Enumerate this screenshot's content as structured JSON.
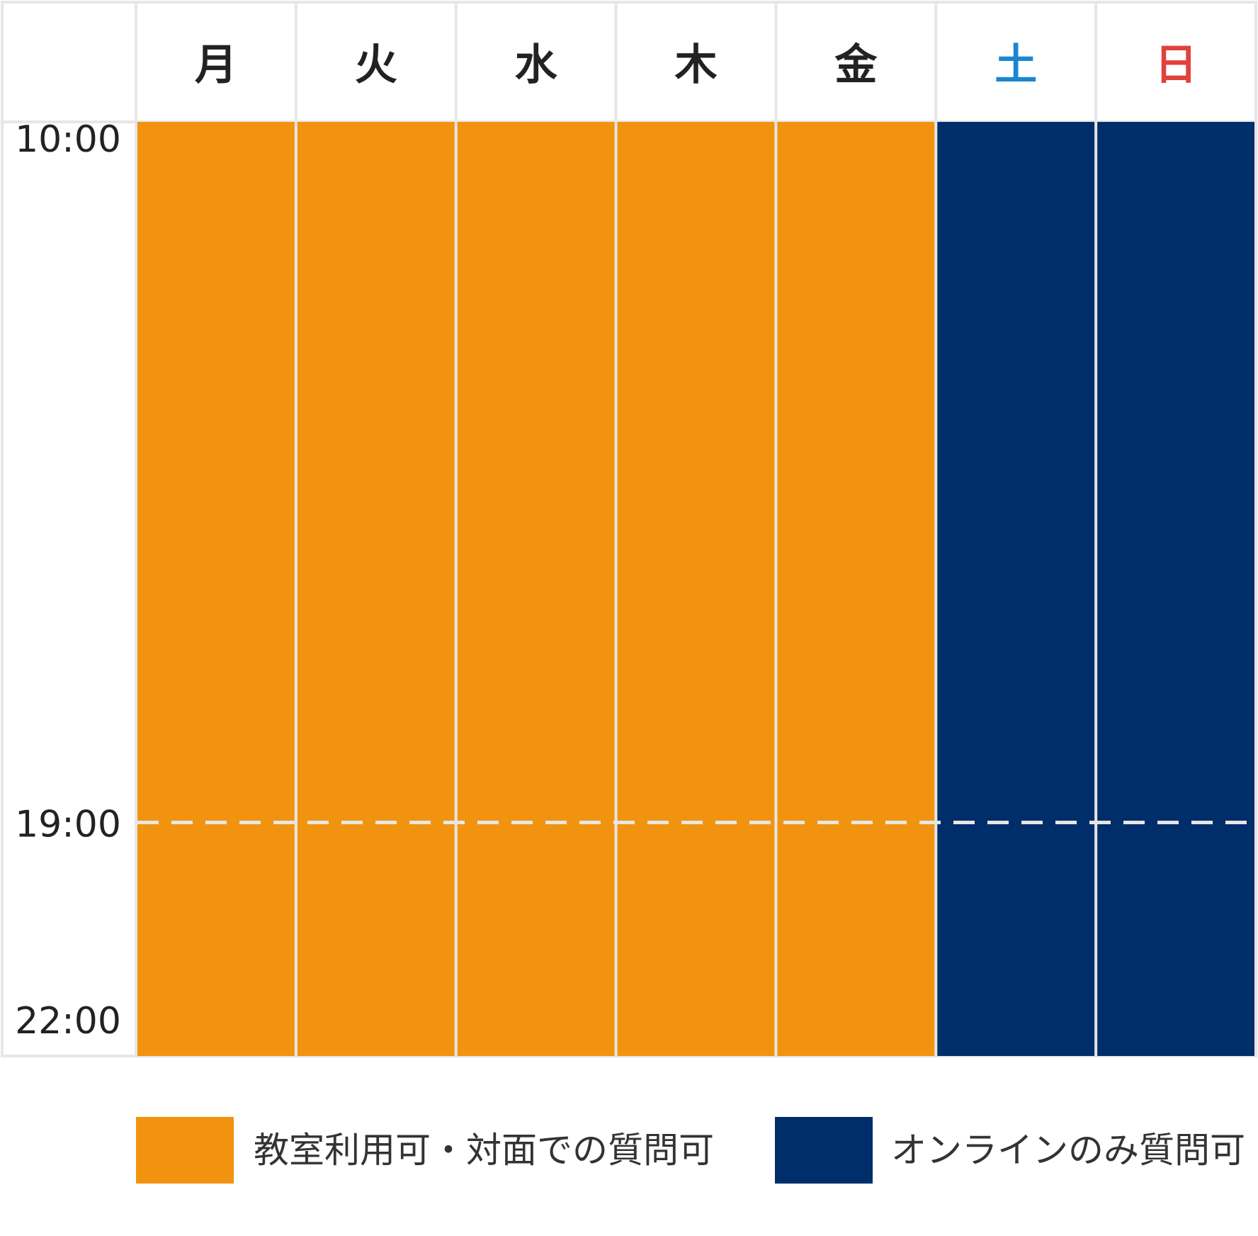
{
  "chart_data": {
    "type": "timetable",
    "days": [
      {
        "label": "月",
        "color": "#222222",
        "category": "classroom"
      },
      {
        "label": "火",
        "color": "#222222",
        "category": "classroom"
      },
      {
        "label": "水",
        "color": "#222222",
        "category": "classroom"
      },
      {
        "label": "木",
        "color": "#222222",
        "category": "classroom"
      },
      {
        "label": "金",
        "color": "#222222",
        "category": "classroom"
      },
      {
        "label": "土",
        "color": "#1a86d0",
        "category": "online"
      },
      {
        "label": "日",
        "color": "#e0413a",
        "category": "online"
      }
    ],
    "time_ticks": [
      "10:00",
      "19:00",
      "22:00"
    ],
    "time_range": [
      "10:00",
      "22:00"
    ],
    "marker_time": "19:00",
    "blocks_start": "10:00",
    "blocks_end": "22:00",
    "legend": [
      {
        "key": "classroom",
        "label": "教室利用可・対面での質問可",
        "color": "#f2930f"
      },
      {
        "key": "online",
        "label": "オンラインのみ質問可",
        "color": "#002e6a"
      }
    ],
    "grid_color": "#e6e6e6",
    "marker_color": "#e6e6e6"
  }
}
